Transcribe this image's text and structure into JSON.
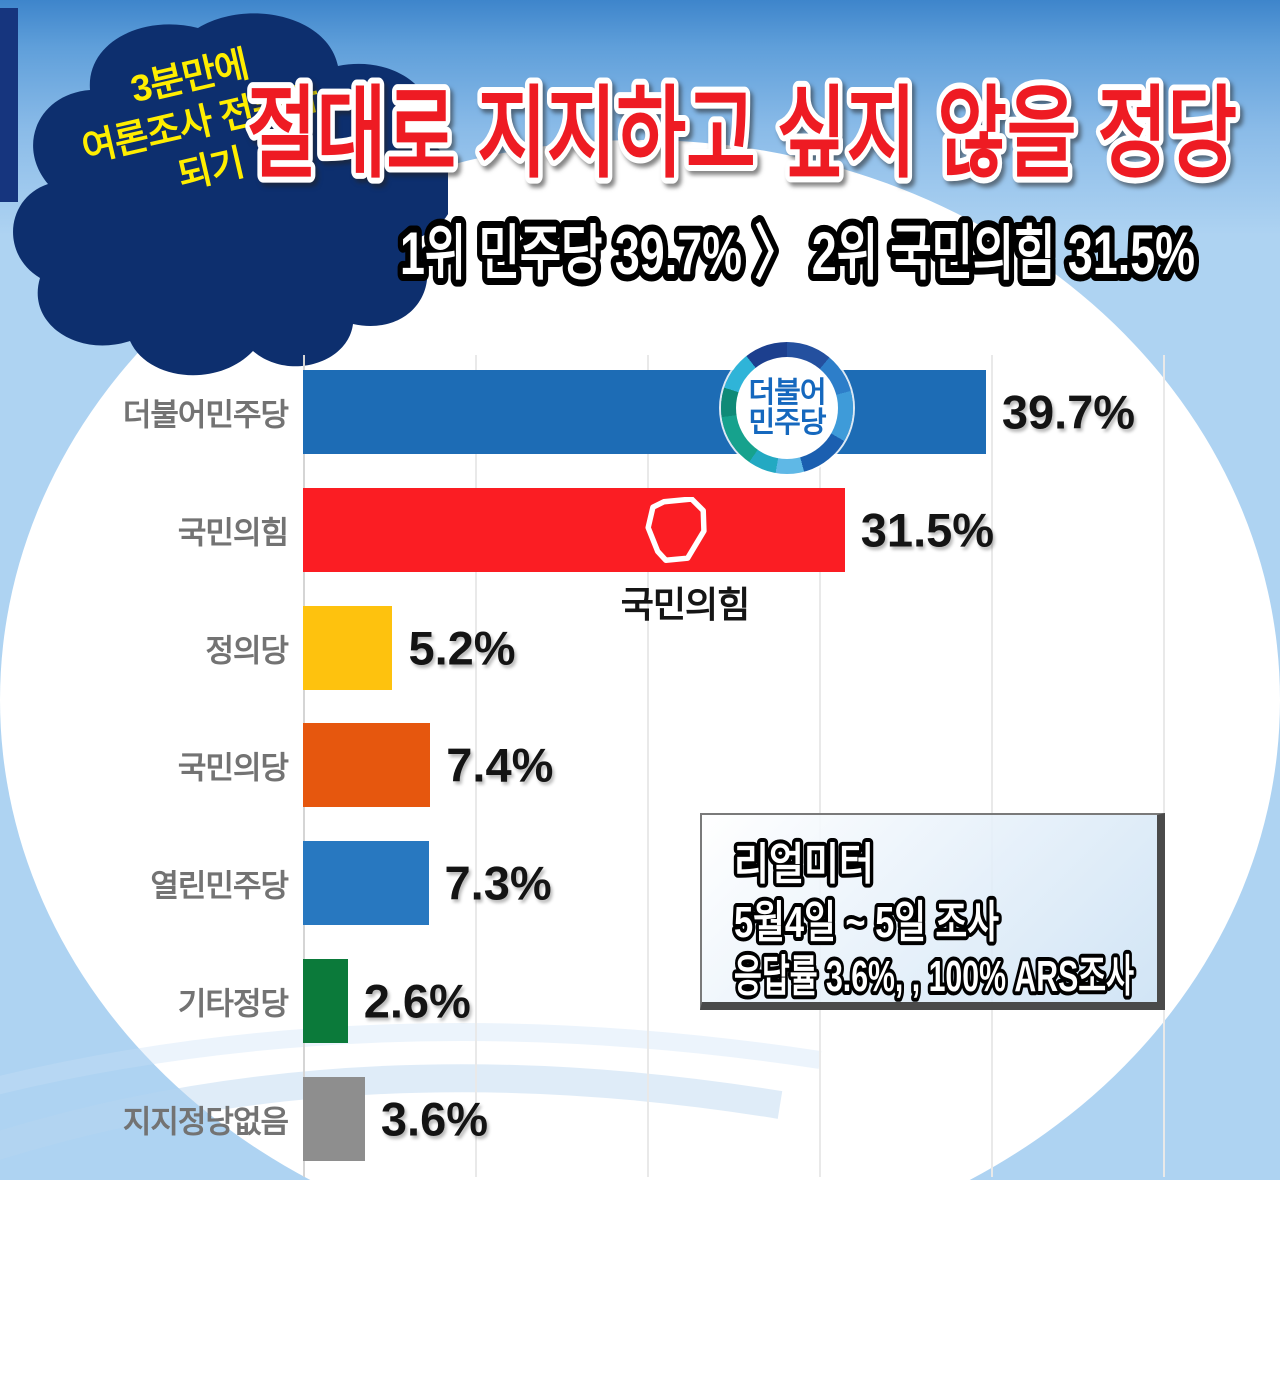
{
  "corner_badge": {
    "lines": [
      "3분만에",
      "여론조사 전문가",
      "되기"
    ]
  },
  "title": "절대로 지지하고 싶지 않을 정당",
  "subtitle": "1위 민주당 39.7% 〉 2위 국민의힘 31.5%",
  "chart_data": {
    "type": "bar",
    "orientation": "horizontal",
    "title": "절대로 지지하고 싶지 않을 정당",
    "categories": [
      "더불어민주당",
      "국민의힘",
      "정의당",
      "국민의당",
      "열린민주당",
      "기타정당",
      "지지정당없음"
    ],
    "values": [
      39.7,
      31.5,
      5.2,
      7.4,
      7.3,
      2.6,
      3.6
    ],
    "value_labels": [
      "39.7%",
      "31.5%",
      "5.2%",
      "7.4%",
      "7.3%",
      "2.6%",
      "3.6%"
    ],
    "bar_colors": [
      "#1d6cb5",
      "#fb1d23",
      "#fec20e",
      "#e6570e",
      "#2878c0",
      "#0b7a3a",
      "#8e8e8e"
    ],
    "xlim": [
      0,
      50
    ],
    "grid_step": 10,
    "grid": true,
    "legend": false,
    "xlabel": "",
    "ylabel": ""
  },
  "overlays": {
    "dp_badge": {
      "lines": [
        "더불어",
        "민주당"
      ]
    },
    "ppp_logo_label": "국민의힘"
  },
  "source_box": {
    "lines": [
      "리얼미터",
      "5월4일 ~ 5일 조사",
      "응답률 3.6%, , 100% ARS조사"
    ]
  },
  "colors": {
    "title_red": "#ee1b23",
    "blob_navy": "#0d2f6e",
    "corner_text_yellow": "#ffee00",
    "dp_badge_text_blue": "#1568be",
    "category_label_gray": "#737373",
    "sky_top": "#3e85cb",
    "sky_light": "#aed3f2"
  }
}
